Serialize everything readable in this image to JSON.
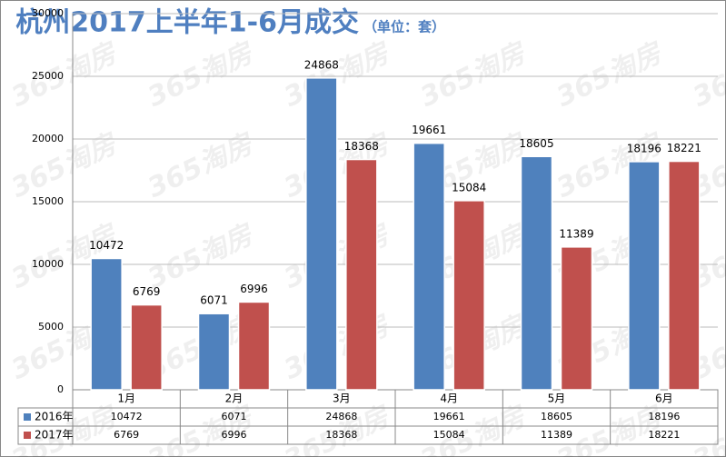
{
  "chart_data": {
    "type": "bar",
    "title": "杭州2017上半年1-6月成交",
    "subtitle": "（单位：套）",
    "watermark": "365淘房",
    "categories": [
      "1月",
      "2月",
      "3月",
      "4月",
      "5月",
      "6月"
    ],
    "series": [
      {
        "name": "2016年",
        "color": "#4f81bd",
        "values": [
          10472,
          6071,
          24868,
          19661,
          18605,
          18196
        ]
      },
      {
        "name": "2017年",
        "color": "#c0504d",
        "values": [
          6769,
          6996,
          18368,
          15084,
          11389,
          18221
        ]
      }
    ],
    "ylim": [
      0,
      30000
    ],
    "yticks": [
      0,
      5000,
      10000,
      15000,
      20000,
      25000,
      30000
    ],
    "grid": true,
    "data_table": true
  }
}
